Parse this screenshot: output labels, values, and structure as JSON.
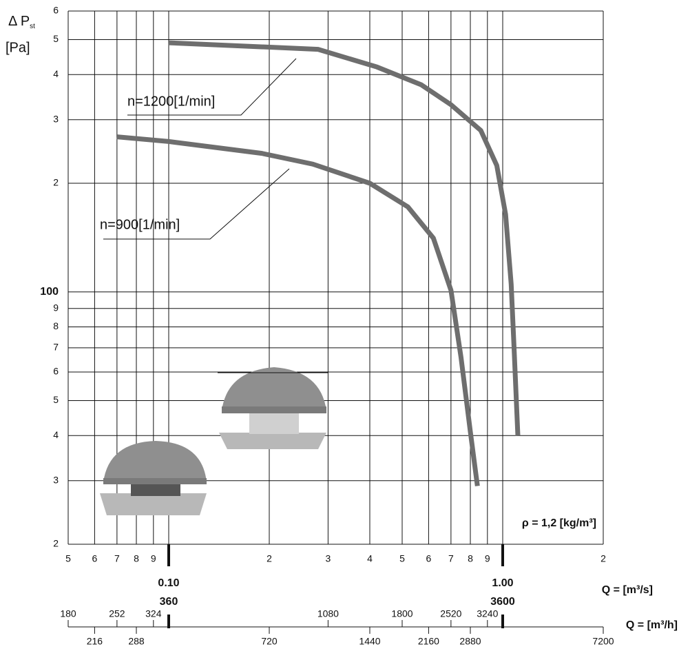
{
  "chart_data": {
    "type": "line",
    "log_x": true,
    "log_y": true,
    "grid": true,
    "y_label": {
      "main": "Δ P",
      "sub": "st",
      "unit": "[Pa]"
    },
    "x_label": "Q = [m³/s]",
    "x2_label": "Q = [m³/h]",
    "annotation": "ρ = 1,2 [kg/m³]",
    "xlim": [
      0.05,
      2
    ],
    "xticks": [
      {
        "value": 0.05,
        "label": "5"
      },
      {
        "value": 0.06,
        "label": "6"
      },
      {
        "value": 0.07,
        "label": "7"
      },
      {
        "value": 0.08,
        "label": "8"
      },
      {
        "value": 0.09,
        "label": "9"
      },
      {
        "value": 0.1,
        "label": "0.10"
      },
      {
        "value": 0.2,
        "label": "2"
      },
      {
        "value": 0.3,
        "label": "3"
      },
      {
        "value": 0.4,
        "label": "4"
      },
      {
        "value": 0.5,
        "label": "5"
      },
      {
        "value": 0.6,
        "label": "6"
      },
      {
        "value": 0.7,
        "label": "7"
      },
      {
        "value": 0.8,
        "label": "8"
      },
      {
        "value": 0.9,
        "label": "9"
      },
      {
        "value": 1,
        "label": "1.00"
      },
      2
    ],
    "x2lim": [
      180,
      7200
    ],
    "x2ticks": [
      180,
      216,
      252,
      288,
      324,
      360,
      720,
      1080,
      1440,
      1800,
      2160,
      2520,
      2880,
      3240,
      3600,
      7200
    ],
    "ylim": [
      20,
      600
    ],
    "yticks": [
      {
        "value": 20,
        "label": "2"
      },
      {
        "value": 30,
        "label": "3"
      },
      {
        "value": 40,
        "label": "4"
      },
      {
        "value": 50,
        "label": "5"
      },
      {
        "value": 60,
        "label": "6"
      },
      {
        "value": 70,
        "label": "7"
      },
      {
        "value": 80,
        "label": "8"
      },
      {
        "value": 90,
        "label": "9"
      },
      100,
      {
        "value": 200,
        "label": "2"
      },
      {
        "value": 300,
        "label": "3"
      },
      {
        "value": 400,
        "label": "4"
      },
      {
        "value": 500,
        "label": "5"
      },
      {
        "value": 600,
        "label": "6"
      }
    ],
    "series": [
      {
        "name": "n=1200[1/min]",
        "color": "#6e6e6e",
        "x": [
          0.1,
          0.28,
          0.42,
          0.57,
          0.7,
          0.86,
          0.96,
          1.02,
          1.06,
          1.08,
          1.11
        ],
        "values": [
          490,
          470,
          420,
          375,
          330,
          280,
          224,
          164,
          105,
          72,
          40
        ]
      },
      {
        "name": "n=900[1/min]",
        "color": "#6e6e6e",
        "x": [
          0.07,
          0.1,
          0.19,
          0.27,
          0.4,
          0.52,
          0.62,
          0.7,
          0.75,
          0.8,
          0.84
        ],
        "values": [
          269,
          261,
          242,
          226,
          200,
          172,
          141,
          101,
          66,
          41,
          29
        ]
      }
    ]
  }
}
